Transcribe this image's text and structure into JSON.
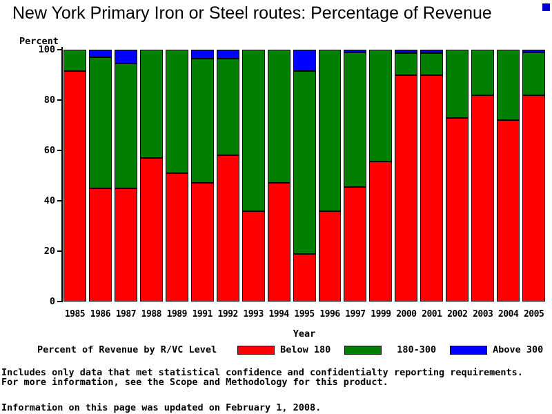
{
  "title": "New York Primary Iron or Steel routes: Percentage of Revenue",
  "y_axis": {
    "label": "Percent",
    "ticks": [
      0,
      20,
      40,
      60,
      80,
      100
    ]
  },
  "x_axis": {
    "label": "Year"
  },
  "legend": {
    "title": "Percent of Revenue by R/VC Level",
    "items": [
      {
        "label": "Below 180",
        "color": "#ff0000"
      },
      {
        "label": "180-300",
        "color": "#008000"
      },
      {
        "label": "Above 300",
        "color": "#0000ff"
      }
    ],
    "position": "bottom"
  },
  "footer": {
    "line1": "Includes only data that met statistical confidence and confidentialty reporting requirements.",
    "line2": "For more information, see the Scope and Methodology for this product.",
    "updated": "Information on this page was updated on February 1, 2008."
  },
  "colors": {
    "below_180": "#ff0000",
    "band_180_300": "#008000",
    "above_300": "#0000ff",
    "corner_mark": "#0000cd"
  },
  "chart_data": {
    "type": "bar",
    "stacked": true,
    "grid": false,
    "title": "New York Primary Iron or Steel routes: Percentage of Revenue",
    "xlabel": "Year",
    "ylabel": "Percent",
    "ylim": [
      0,
      100
    ],
    "legend_position": "bottom",
    "categories": [
      "1985",
      "1986",
      "1987",
      "1988",
      "1989",
      "1991",
      "1992",
      "1993",
      "1994",
      "1995",
      "1996",
      "1997",
      "1999",
      "2000",
      "2001",
      "2002",
      "2003",
      "2004",
      "2005"
    ],
    "series": [
      {
        "name": "Below 180",
        "color": "#ff0000",
        "values": [
          91.5,
          45,
          45,
          57,
          51,
          47,
          58,
          36,
          47,
          19,
          36,
          45.5,
          55.5,
          90,
          90,
          73,
          82,
          72,
          82
        ]
      },
      {
        "name": "180-300",
        "color": "#008000",
        "values": [
          8.5,
          52,
          49.5,
          43,
          49,
          49.5,
          38.5,
          64,
          53,
          72.5,
          64,
          53.5,
          44.5,
          8.5,
          8.5,
          27,
          18,
          28,
          17
        ]
      },
      {
        "name": "Above 300",
        "color": "#0000ff",
        "values": [
          0,
          3,
          5.5,
          0,
          0,
          3.5,
          3.5,
          0,
          0,
          8.5,
          0,
          1,
          0,
          1.5,
          1.5,
          0,
          0,
          0,
          1
        ]
      }
    ]
  }
}
